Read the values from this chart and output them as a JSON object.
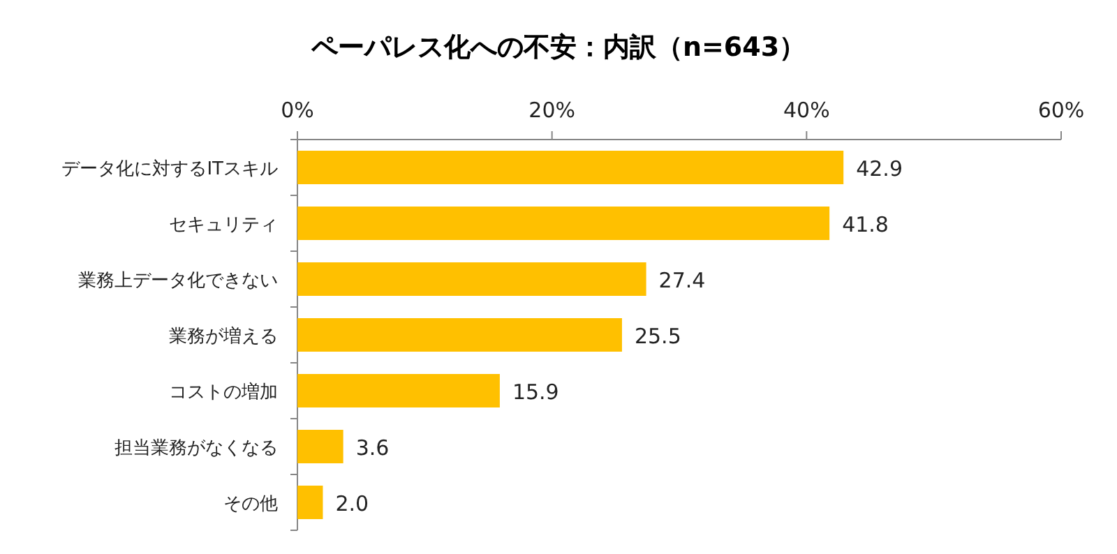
{
  "chart_data": {
    "type": "bar",
    "orientation": "horizontal",
    "title": "ペーパレス化への不安：内訳（n=643）",
    "categories": [
      "データ化に対するITスキル",
      "セキュリティ",
      "業務上データ化できない",
      "業務が増える",
      "コストの増加",
      "担当業務がなくなる",
      "その他"
    ],
    "values": [
      42.9,
      41.8,
      27.4,
      25.5,
      15.9,
      3.6,
      2.0
    ],
    "value_labels": [
      "42.9",
      "41.8",
      "27.4",
      "25.5",
      "15.9",
      "3.6",
      "2.0"
    ],
    "color": "#ffc000",
    "xlim": [
      0,
      60
    ],
    "xticks": [
      {
        "value": 0,
        "label": "0%"
      },
      {
        "value": 20,
        "label": "20%"
      },
      {
        "value": 40,
        "label": "40%"
      },
      {
        "value": 60,
        "label": "60%"
      }
    ],
    "grid": false
  }
}
